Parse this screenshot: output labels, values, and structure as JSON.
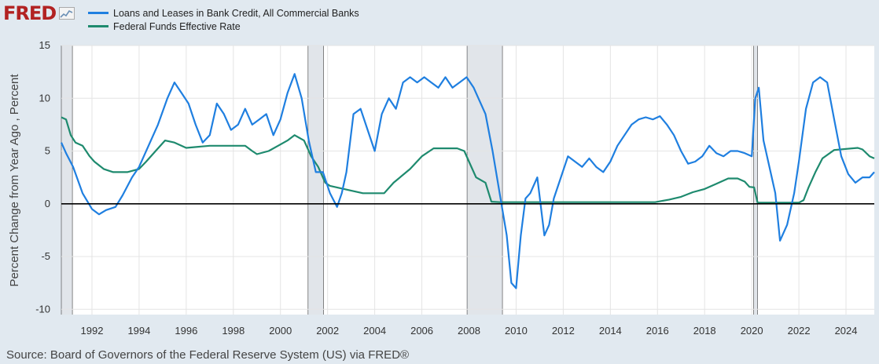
{
  "brand": {
    "logo_text": "FRED"
  },
  "source": "Source: Board of Governors of the Federal Reserve System (US) via FRED®",
  "colors": {
    "background": "#e1e9f0",
    "plot_bg": "#ffffff",
    "recession": "#e1e5ea",
    "loans": "#1f7fe0",
    "fedfunds": "#1e8a6e",
    "zero_line": "#000000"
  },
  "chart_data": {
    "type": "line",
    "title": "",
    "ylabel": "Percent Change from Year Ago , Percent",
    "xlabel": "",
    "xlim": [
      1990.7,
      2025.2
    ],
    "ylim": [
      -10.5,
      15
    ],
    "y_ticks": [
      15,
      10,
      5,
      0,
      -5,
      -10
    ],
    "x_ticks": [
      1992,
      1994,
      1996,
      1998,
      2000,
      2002,
      2004,
      2006,
      2008,
      2010,
      2012,
      2014,
      2016,
      2018,
      2020,
      2022,
      2024
    ],
    "grid": true,
    "legend_position": "top-left",
    "recessions": [
      [
        1990.7,
        1991.17
      ],
      [
        2001.17,
        2001.83
      ],
      [
        2007.92,
        2009.42
      ],
      [
        2020.08,
        2020.25
      ]
    ],
    "series": [
      {
        "name": "Loans and Leases in Bank Credit, All Commercial Banks",
        "color": "#1f7fe0",
        "x": [
          1990.7,
          1990.9,
          1991.2,
          1991.6,
          1992.0,
          1992.3,
          1992.6,
          1993.0,
          1993.3,
          1993.7,
          1994.0,
          1994.4,
          1994.8,
          1995.2,
          1995.5,
          1995.8,
          1996.1,
          1996.4,
          1996.7,
          1997.0,
          1997.3,
          1997.6,
          1997.9,
          1998.2,
          1998.5,
          1998.8,
          1999.1,
          1999.4,
          1999.7,
          2000.0,
          2000.3,
          2000.6,
          2000.9,
          2001.2,
          2001.5,
          2001.8,
          2002.1,
          2002.4,
          2002.6,
          2002.8,
          2003.1,
          2003.4,
          2003.7,
          2004.0,
          2004.3,
          2004.6,
          2004.9,
          2005.2,
          2005.5,
          2005.8,
          2006.1,
          2006.4,
          2006.7,
          2007.0,
          2007.3,
          2007.6,
          2007.9,
          2008.2,
          2008.4,
          2008.7,
          2009.0,
          2009.3,
          2009.6,
          2009.8,
          2010.0,
          2010.2,
          2010.4,
          2010.6,
          2010.9,
          2011.2,
          2011.4,
          2011.6,
          2011.9,
          2012.2,
          2012.5,
          2012.8,
          2013.1,
          2013.4,
          2013.7,
          2014.0,
          2014.3,
          2014.6,
          2014.9,
          2015.2,
          2015.5,
          2015.8,
          2016.1,
          2016.4,
          2016.7,
          2017.0,
          2017.3,
          2017.6,
          2017.9,
          2018.2,
          2018.5,
          2018.8,
          2019.1,
          2019.4,
          2019.7,
          2020.0,
          2020.15,
          2020.3,
          2020.5,
          2020.8,
          2021.0,
          2021.2,
          2021.5,
          2021.8,
          2022.0,
          2022.3,
          2022.6,
          2022.9,
          2023.2,
          2023.5,
          2023.8,
          2024.1,
          2024.4,
          2024.7,
          2025.0,
          2025.2
        ],
        "y": [
          5.8,
          4.8,
          3.5,
          1.0,
          -0.5,
          -1.0,
          -0.6,
          -0.3,
          0.8,
          2.5,
          3.5,
          5.5,
          7.5,
          10.0,
          11.5,
          10.5,
          9.5,
          7.5,
          5.8,
          6.5,
          9.5,
          8.5,
          7.0,
          7.5,
          9.0,
          7.5,
          8.0,
          8.5,
          6.5,
          8.0,
          10.5,
          12.3,
          10.0,
          6.0,
          3.0,
          3.0,
          1.0,
          -0.3,
          1.0,
          3.0,
          8.5,
          9.0,
          7.0,
          5.0,
          8.5,
          10.0,
          9.0,
          11.5,
          12.0,
          11.5,
          12.0,
          11.5,
          11.0,
          12.0,
          11.0,
          11.5,
          12.0,
          11.0,
          10.0,
          8.5,
          5.0,
          1.0,
          -3.0,
          -7.5,
          -8.0,
          -3.0,
          0.5,
          1.0,
          2.5,
          -3.0,
          -2.0,
          0.5,
          2.5,
          4.5,
          4.0,
          3.5,
          4.3,
          3.5,
          3.0,
          4.0,
          5.5,
          6.5,
          7.5,
          8.0,
          8.2,
          8.0,
          8.3,
          7.5,
          6.5,
          5.0,
          3.8,
          4.0,
          4.5,
          5.5,
          4.8,
          4.5,
          5.0,
          5.0,
          4.8,
          4.5,
          10.0,
          11.0,
          6.0,
          3.0,
          1.0,
          -3.5,
          -2.0,
          1.0,
          4.0,
          9.0,
          11.5,
          12.0,
          11.5,
          8.0,
          4.5,
          2.8,
          2.0,
          2.5,
          2.5,
          3.0
        ]
      },
      {
        "name": "Federal Funds Effective Rate",
        "color": "#1e8a6e",
        "x": [
          1990.7,
          1990.9,
          1991.1,
          1991.3,
          1991.6,
          1991.9,
          1992.1,
          1992.5,
          1992.9,
          1993.5,
          1994.0,
          1994.3,
          1994.7,
          1995.1,
          1995.5,
          1996.0,
          1997.0,
          1997.5,
          1998.5,
          1998.8,
          1999.0,
          1999.5,
          1999.9,
          2000.3,
          2000.6,
          2001.0,
          2001.3,
          2001.6,
          2001.9,
          2002.1,
          2002.9,
          2003.5,
          2004.4,
          2004.8,
          2005.5,
          2006.0,
          2006.5,
          2007.5,
          2007.8,
          2008.0,
          2008.3,
          2008.7,
          2008.95,
          2009.3,
          2015.9,
          2016.5,
          2017.0,
          2017.5,
          2018.0,
          2018.5,
          2019.0,
          2019.4,
          2019.7,
          2019.9,
          2020.1,
          2020.25,
          2022.0,
          2022.2,
          2022.4,
          2022.7,
          2023.0,
          2023.5,
          2024.5,
          2024.7,
          2025.0,
          2025.2
        ],
        "y": [
          8.2,
          8.0,
          6.5,
          5.8,
          5.5,
          4.5,
          4.0,
          3.3,
          3.0,
          3.0,
          3.3,
          4.0,
          5.0,
          6.0,
          5.8,
          5.3,
          5.5,
          5.5,
          5.5,
          5.0,
          4.7,
          5.0,
          5.5,
          6.0,
          6.5,
          6.0,
          4.5,
          3.5,
          2.0,
          1.7,
          1.3,
          1.0,
          1.0,
          2.0,
          3.3,
          4.5,
          5.25,
          5.25,
          5.0,
          4.0,
          2.5,
          2.0,
          0.2,
          0.15,
          0.15,
          0.4,
          0.66,
          1.1,
          1.4,
          1.9,
          2.4,
          2.4,
          2.1,
          1.6,
          1.55,
          0.1,
          0.1,
          0.35,
          1.5,
          3.0,
          4.3,
          5.1,
          5.3,
          5.15,
          4.5,
          4.3
        ]
      }
    ]
  }
}
